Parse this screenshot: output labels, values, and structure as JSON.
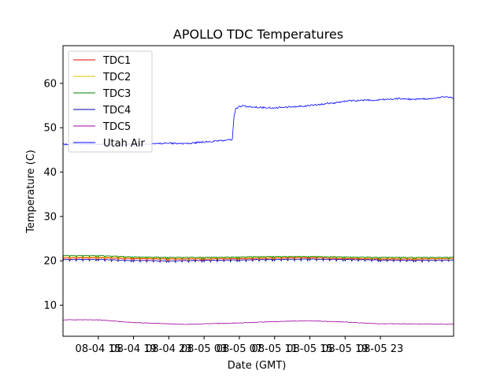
{
  "chart_data": {
    "type": "line",
    "title": "APOLLO TDC Temperatures",
    "xlabel": "Date (GMT)",
    "ylabel": "Temperature (C)",
    "x_unit": "hours from 08-04 11:00 GMT",
    "xlim": [
      0,
      44.3
    ],
    "ylim": [
      3,
      68.5
    ],
    "yticks": [
      10,
      20,
      30,
      40,
      50,
      60
    ],
    "xticks": [
      {
        "x": 4,
        "label": "08-04 15"
      },
      {
        "x": 8,
        "label": "08-04 19"
      },
      {
        "x": 12,
        "label": "08-04 23"
      },
      {
        "x": 16,
        "label": "08-05 03"
      },
      {
        "x": 20,
        "label": "08-05 07"
      },
      {
        "x": 24,
        "label": "08-05 11"
      },
      {
        "x": 28,
        "label": "08-05 15"
      },
      {
        "x": 32,
        "label": "08-05 19"
      },
      {
        "x": 36,
        "label": "08-05 23"
      }
    ],
    "legend_position": "upper-left",
    "grid": false,
    "series": [
      {
        "name": "TDC1",
        "color": "#ff0000",
        "x": [
          0,
          4,
          8,
          12,
          16,
          20,
          24,
          28,
          32,
          36,
          40,
          44.3
        ],
        "y": [
          20.6,
          20.7,
          20.5,
          20.4,
          20.4,
          20.5,
          20.6,
          20.7,
          20.5,
          20.4,
          20.4,
          20.5
        ]
      },
      {
        "name": "TDC2",
        "color": "#e5c100",
        "x": [
          0,
          4,
          8,
          12,
          16,
          20,
          24,
          28,
          32,
          36,
          40,
          44.3
        ],
        "y": [
          20.9,
          20.9,
          20.7,
          20.6,
          20.6,
          20.7,
          20.8,
          20.9,
          20.7,
          20.6,
          20.6,
          20.6
        ]
      },
      {
        "name": "TDC3",
        "color": "#008000",
        "x": [
          0,
          4,
          8,
          12,
          16,
          20,
          24,
          28,
          32,
          36,
          40,
          44.3
        ],
        "y": [
          21.2,
          21.2,
          20.9,
          20.8,
          20.8,
          20.9,
          21.0,
          21.0,
          20.9,
          20.8,
          20.8,
          20.8
        ]
      },
      {
        "name": "TDC4",
        "color": "#0000aa",
        "x": [
          0,
          4,
          8,
          12,
          16,
          20,
          24,
          28,
          32,
          36,
          40,
          44.3
        ],
        "y": [
          20.3,
          20.3,
          20.1,
          20.0,
          20.1,
          20.2,
          20.3,
          20.4,
          20.3,
          20.2,
          20.1,
          20.2
        ]
      },
      {
        "name": "TDC5",
        "color": "#a000a0",
        "x": [
          0,
          4,
          6,
          8,
          12,
          14,
          16,
          20,
          24,
          28,
          32,
          36,
          40,
          44.3
        ],
        "y": [
          6.7,
          6.7,
          6.4,
          6.1,
          5.8,
          5.7,
          5.8,
          6.0,
          6.3,
          6.5,
          6.2,
          5.8,
          5.8,
          5.7
        ]
      },
      {
        "name": "Utah Air",
        "color": "#0000ff",
        "x": [
          0,
          4,
          8,
          12,
          14,
          16,
          19.2,
          19.4,
          19.6,
          20,
          20.5,
          21,
          24,
          28,
          30,
          31,
          32,
          34,
          36,
          38,
          40,
          42,
          43,
          44.3
        ],
        "y": [
          46.3,
          46.3,
          46.2,
          46.5,
          46.4,
          46.8,
          47.3,
          52.5,
          54.2,
          54.8,
          55.0,
          54.7,
          54.5,
          55.0,
          55.5,
          55.6,
          56.0,
          56.2,
          56.3,
          56.6,
          56.4,
          56.6,
          57.0,
          56.7
        ]
      }
    ]
  }
}
